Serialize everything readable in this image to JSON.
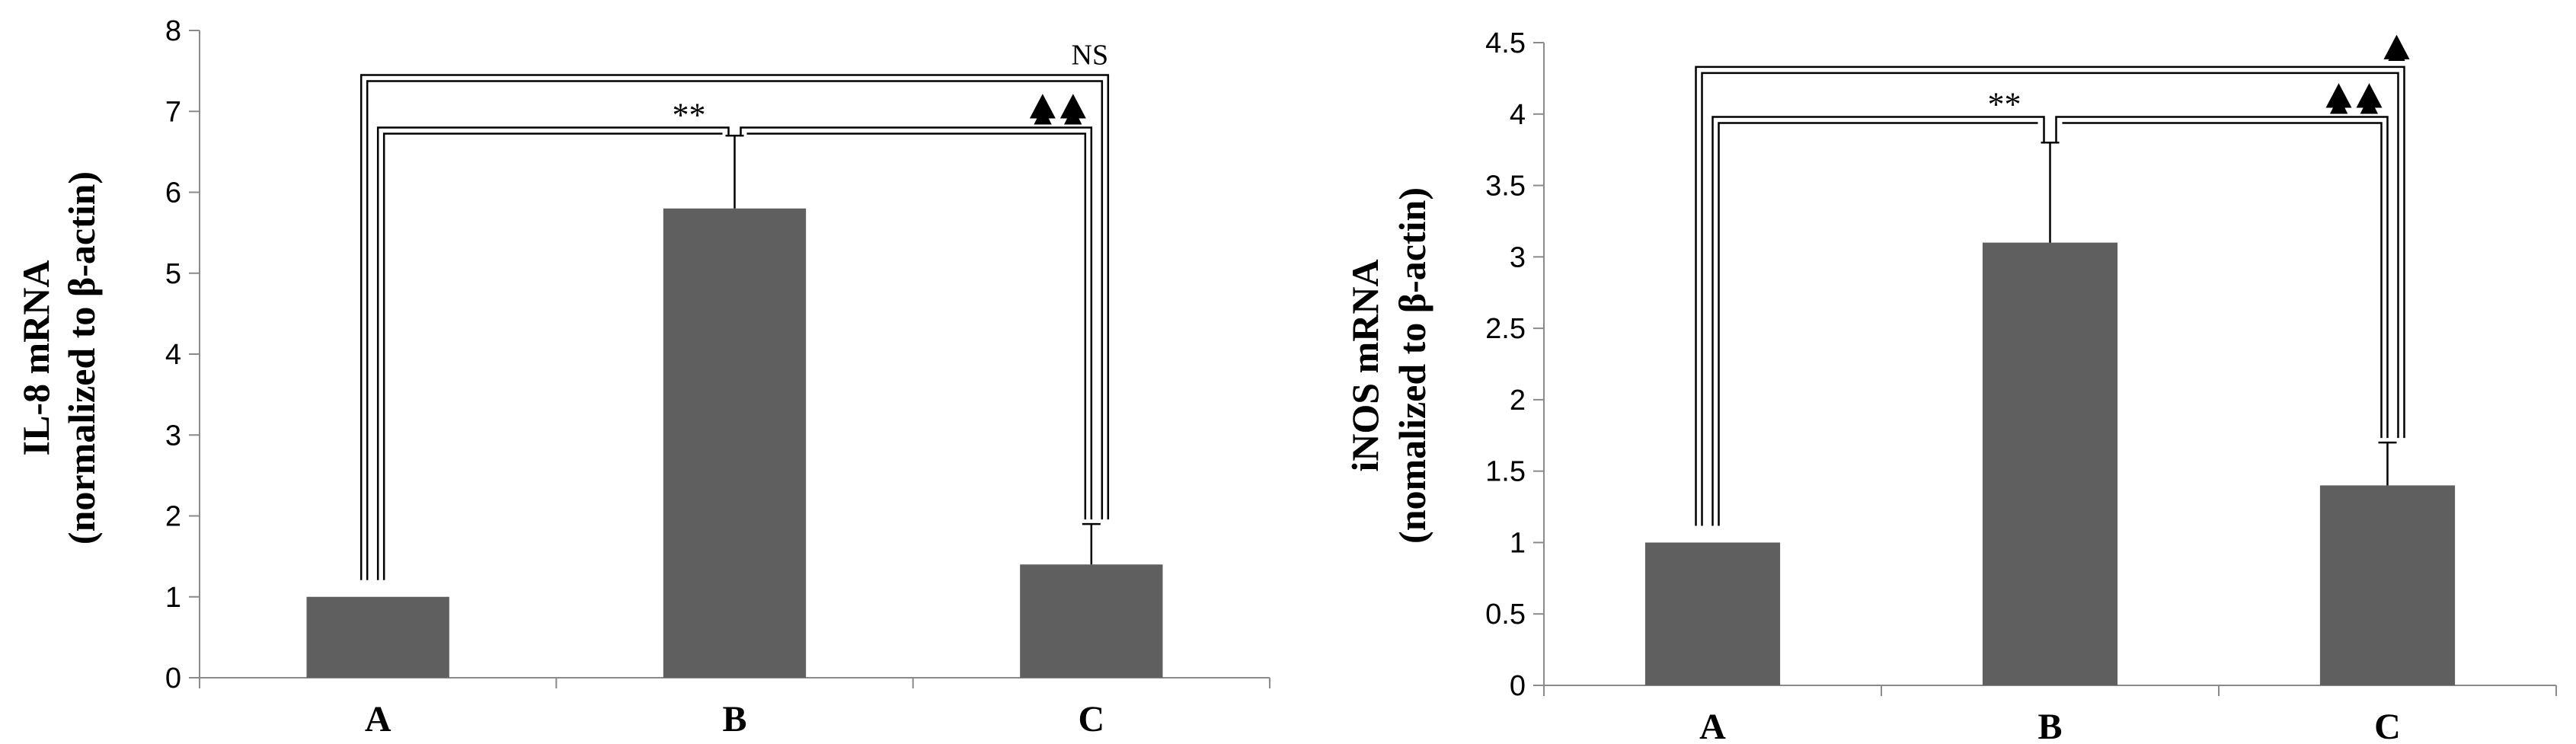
{
  "chart_data": [
    {
      "type": "bar",
      "categories": [
        "A",
        "B",
        "C"
      ],
      "values": [
        1.0,
        5.8,
        1.4
      ],
      "error_upper": [
        0,
        0.9,
        0.5
      ],
      "title": "",
      "ylabel_line1": "IL-8 mRNA",
      "ylabel_line2": "(normalized to β-actin)",
      "ylim": [
        0,
        8
      ],
      "yticks": [
        "0",
        "1",
        "2",
        "3",
        "4",
        "5",
        "6",
        "7",
        "8"
      ],
      "ytick_values": [
        0,
        1,
        2,
        3,
        4,
        5,
        6,
        7,
        8
      ],
      "grid": false,
      "annotations": {
        "inner_bracket_label": "**",
        "inner_bracket_right_label": "▲▲",
        "outer_bracket_label": "NS"
      },
      "bar_color": "#5f5f5f"
    },
    {
      "type": "bar",
      "categories": [
        "A",
        "B",
        "C"
      ],
      "values": [
        1.0,
        3.1,
        1.4
      ],
      "error_upper": [
        0,
        0.7,
        0.3
      ],
      "title": "",
      "ylabel_line1": "iNOS mRNA",
      "ylabel_line2": "(nomalized to β-actin)",
      "ylim": [
        0,
        4.5
      ],
      "yticks": [
        "0",
        "0.5",
        "1",
        "1.5",
        "2",
        "2.5",
        "3",
        "3.5",
        "4",
        "4.5"
      ],
      "ytick_values": [
        0,
        0.5,
        1,
        1.5,
        2,
        2.5,
        3,
        3.5,
        4,
        4.5
      ],
      "grid": false,
      "annotations": {
        "inner_bracket_label": "**",
        "inner_bracket_right_label": "▲▲",
        "outer_bracket_label": "▲"
      },
      "bar_color": "#5f5f5f"
    }
  ]
}
